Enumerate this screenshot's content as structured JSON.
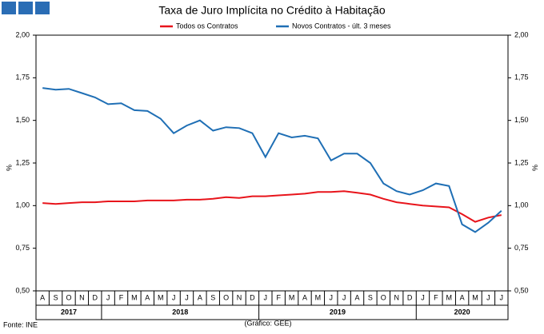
{
  "chart_data": {
    "type": "line",
    "title": "Taxa de Juro Implícita no Crédito à Habitação",
    "y_label": "%",
    "y2_label": "%",
    "source": "Fonte: INE",
    "credit": "(Gráfico: GEE)",
    "categories": [
      "A",
      "S",
      "O",
      "N",
      "D",
      "J",
      "F",
      "M",
      "A",
      "M",
      "J",
      "J",
      "A",
      "S",
      "O",
      "N",
      "D",
      "J",
      "F",
      "M",
      "A",
      "M",
      "J",
      "J",
      "A",
      "S",
      "O",
      "N",
      "D",
      "J",
      "F",
      "M",
      "A",
      "M",
      "J",
      "J"
    ],
    "x_groups": [
      {
        "label": "2017",
        "size": 5
      },
      {
        "label": "2018",
        "size": 12
      },
      {
        "label": "2019",
        "size": 12
      },
      {
        "label": "2020",
        "size": 7
      }
    ],
    "series": [
      {
        "name": "Todos os Contratos",
        "color": "#e8141b",
        "values": [
          1.015,
          1.01,
          1.015,
          1.02,
          1.02,
          1.025,
          1.025,
          1.025,
          1.03,
          1.03,
          1.03,
          1.035,
          1.035,
          1.04,
          1.05,
          1.045,
          1.055,
          1.055,
          1.06,
          1.065,
          1.07,
          1.08,
          1.08,
          1.085,
          1.075,
          1.065,
          1.04,
          1.02,
          1.01,
          1.0,
          0.995,
          0.99,
          0.95,
          0.905,
          0.93,
          0.945
        ]
      },
      {
        "name": "Novos Contratos - últ. 3 meses",
        "color": "#1f6fb5",
        "values": [
          1.69,
          1.68,
          1.685,
          1.66,
          1.635,
          1.595,
          1.6,
          1.56,
          1.555,
          1.51,
          1.425,
          1.47,
          1.5,
          1.44,
          1.46,
          1.455,
          1.425,
          1.285,
          1.425,
          1.4,
          1.41,
          1.395,
          1.265,
          1.305,
          1.305,
          1.25,
          1.13,
          1.085,
          1.065,
          1.09,
          1.13,
          1.115,
          0.89,
          0.845,
          0.9,
          0.97
        ]
      }
    ],
    "ylim": [
      0.5,
      2.0
    ],
    "yticks": [
      {
        "value": 0.5,
        "label": "0,50"
      },
      {
        "value": 0.75,
        "label": "0,75"
      },
      {
        "value": 1.0,
        "label": "1,00"
      },
      {
        "value": 1.25,
        "label": "1,25"
      },
      {
        "value": 1.5,
        "label": "1,50"
      },
      {
        "value": 1.75,
        "label": "1,75"
      },
      {
        "value": 2.0,
        "label": "2,00"
      }
    ],
    "grid": false
  }
}
